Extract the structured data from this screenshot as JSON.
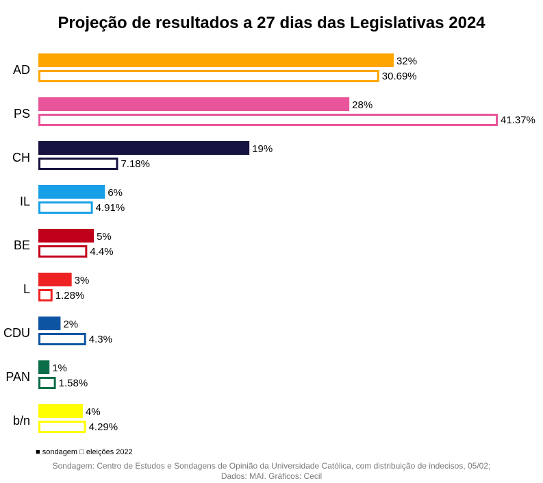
{
  "title": "Projeção de resultados a 27 dias das Legislativas 2024",
  "chart_data": {
    "type": "bar",
    "orientation": "horizontal",
    "title": "Projeção de resultados a 27 dias das Legislativas 2024",
    "categories": [
      "AD",
      "PS",
      "CH",
      "IL",
      "BE",
      "L",
      "CDU",
      "PAN",
      "b/n"
    ],
    "colors": [
      "#ffa500",
      "#e8559a",
      "#16123f",
      "#17a0e8",
      "#c0001a",
      "#ee2222",
      "#0d55a3",
      "#0a6e48",
      "#ffff00"
    ],
    "series": [
      {
        "name": "sondagem",
        "style": "filled",
        "values": [
          32,
          28,
          19,
          6,
          5,
          3,
          2,
          1,
          4
        ],
        "labels": [
          "32%",
          "28%",
          "19%",
          "6%",
          "5%",
          "3%",
          "2%",
          "1%",
          "4%"
        ]
      },
      {
        "name": "eleições 2022",
        "style": "outline",
        "values": [
          30.69,
          41.37,
          7.18,
          4.91,
          4.4,
          1.28,
          4.3,
          1.58,
          4.29
        ],
        "labels": [
          "30.69%",
          "41.37%",
          "7.18%",
          "4.91%",
          "4.4%",
          "1.28%",
          "4.3%",
          "1.58%",
          "4.29%"
        ]
      }
    ],
    "xlim": [
      0,
      41.37
    ],
    "grid": false,
    "legend": "bottom-left"
  },
  "legend": {
    "filled_symbol": "■",
    "filled_label": "sondagem",
    "outline_symbol": "□",
    "outline_label": "eleições 2022"
  },
  "source": {
    "line1": "Sondagem: Centro de Estudos e Sondagens de Opinião da Universidade Católica, com distribuição de indecisos, 05/02;",
    "line2": "Dados: MAI. Gráficos: Cecil"
  }
}
